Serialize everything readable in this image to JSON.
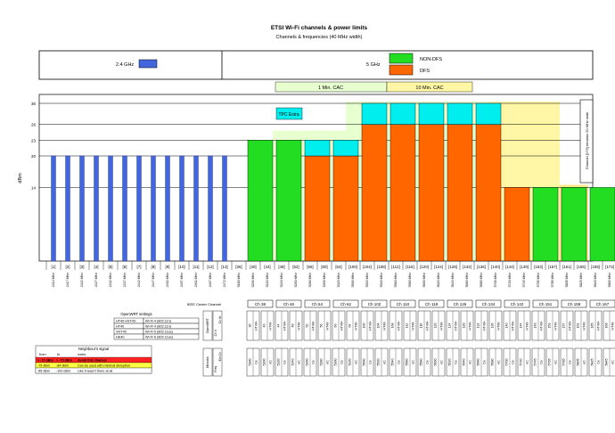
{
  "chart_data": {
    "type": "bar",
    "title": "ETSI Wi-Fi channels & power limits",
    "subtitle": "Channels & frequencies (40 MHz width)",
    "ylabel": "dBm",
    "ylim": [
      0,
      30
    ],
    "yticks": [
      14,
      20,
      23,
      26,
      30
    ],
    "band_labels": {
      "g24": "2.4 GHz",
      "g5": "5 GHz"
    },
    "legend": [
      {
        "name": "NON-DFS",
        "color": "#22dd22"
      },
      {
        "name": "DFS",
        "color": "#ff6600"
      }
    ],
    "cac": {
      "one_min": "1 Min. CAC",
      "ten_min": "10 Min. CAC"
    },
    "tpc_label": "TPC Extra",
    "side_note": "Channel [173] remains 20 MHz wide",
    "colors": {
      "g24": "#4466dd",
      "nondfs": "#22dd22",
      "dfs": "#ff6600",
      "tpc": "#00eeee",
      "cac1": "#e8ffd0",
      "cac10": "#fff6a6",
      "cac_dark": "#ffe98a"
    },
    "x_24": [
      "[1]",
      "[2]",
      "[3]",
      "[4]",
      "[5]",
      "[6]",
      "[7]",
      "[8]",
      "[9]",
      "[10]",
      "[11]",
      "[12]",
      "[13]"
    ],
    "freq_24": [
      "2412 MHz",
      "2417 MHz",
      "2422 MHz",
      "2427 MHz",
      "2432 MHz",
      "2437 MHz",
      "2442 MHz",
      "2447 MHz",
      "2452 MHz",
      "2457 MHz",
      "2462 MHz",
      "2467 MHz",
      "2472 MHz"
    ],
    "values_24": [
      20,
      20,
      20,
      20,
      20,
      20,
      20,
      20,
      20,
      20,
      20,
      20,
      20
    ],
    "bars_5": [
      {
        "label": "[36] [40]",
        "value": 23,
        "type": "nondfs"
      },
      {
        "label": "[44] [48]",
        "value": 23,
        "type": "nondfs"
      },
      {
        "label": "[52] [56]",
        "value": 20,
        "type": "dfs",
        "tpc": 3
      },
      {
        "label": "[60] [64]",
        "value": 20,
        "type": "dfs",
        "tpc": 3
      },
      {
        "label": "[100] [104]",
        "value": 26,
        "type": "dfs",
        "tpc": 4
      },
      {
        "label": "[108] [112]",
        "value": 26,
        "type": "dfs",
        "tpc": 4
      },
      {
        "label": "[116] [120]",
        "value": 26,
        "type": "dfs",
        "tpc": 4
      },
      {
        "label": "[124] [128]",
        "value": 26,
        "type": "dfs",
        "tpc": 4
      },
      {
        "label": "[132] [136]",
        "value": 26,
        "type": "dfs",
        "tpc": 4
      },
      {
        "label": "[140] [144]",
        "value": 14,
        "type": "dfs"
      },
      {
        "label": "[149] [153]",
        "value": 14,
        "type": "nondfs"
      },
      {
        "label": "[157] [161]",
        "value": 14,
        "type": "nondfs"
      },
      {
        "label": "[165] [169]",
        "value": 14,
        "type": "nondfs"
      },
      {
        "label": "[173]",
        "value": 14,
        "type": "nondfs"
      }
    ],
    "x_5": [
      "[36]",
      "[40]",
      "[44]",
      "[48]",
      "[52]",
      "[56]",
      "[60]",
      "[64]",
      "[100]",
      "[104]",
      "[108]",
      "[112]",
      "[116]",
      "[120]",
      "[124]",
      "[128]",
      "[132]",
      "[136]",
      "[140]",
      "[144]",
      "[149]",
      "[153]",
      "[157]",
      "[161]",
      "[165]",
      "[169]",
      "[173]"
    ],
    "freq_5": [
      "5180 MHz",
      "5200 MHz",
      "5220 MHz",
      "5240 MHz",
      "5260 MHz",
      "5280 MHz",
      "5300 MHz",
      "5320 MHz",
      "5500 MHz",
      "5520 MHz",
      "5540 MHz",
      "5560 MHz",
      "5580 MHz",
      "5600 MHz",
      "5620 MHz",
      "5640 MHz",
      "5660 MHz",
      "5680 MHz",
      "5700 MHz",
      "5720 MHz",
      "5745 MHz",
      "5765 MHz",
      "5785 MHz",
      "5805 MHz",
      "5825 MHz",
      "5845 MHz",
      "5865 MHz"
    ],
    "ieee_label": "IEEE Center Channel",
    "ieee_centers": [
      "Ch 38",
      "Ch 46",
      "Ch 54",
      "Ch 62",
      "Ch 102",
      "Ch 110",
      "Ch 118",
      "Ch 126",
      "Ch 134",
      "Ch 142",
      "Ch 151",
      "Ch 159",
      "Ch 167"
    ],
    "openwrt_title": "OpenWRT settings",
    "openwrt_rows": [
      [
        "HT40+/HT40-",
        "Wi-Fi 4 (802.11n)"
      ],
      [
        "HT40",
        "Wi-Fi 4 (802.11n)"
      ],
      [
        "VHT40",
        "Wi-Fi 5 (802.11ac)"
      ],
      [
        "HE40",
        "Wi-Fi 6 (802.11ax)"
      ]
    ],
    "openwrt_col": [
      "OpenWRT",
      "Ch #",
      "Ch Nr"
    ],
    "upper_cells": [
      [
        "36",
        "HT40+"
      ],
      [
        "40",
        "HT40-"
      ],
      [
        "44",
        "HT40+"
      ],
      [
        "48",
        "HT40-"
      ],
      [
        "52",
        "HT40+"
      ],
      [
        "56",
        "HT40-"
      ],
      [
        "60",
        "HT40+"
      ],
      [
        "64",
        "HT40-"
      ],
      [
        "100",
        "HT40+"
      ],
      [
        "104",
        "HT40-"
      ],
      [
        "108",
        "HT40+"
      ],
      [
        "112",
        "HT40-"
      ],
      [
        "116",
        "HT40+"
      ],
      [
        "120",
        "HT40-"
      ],
      [
        "124",
        "HT40+"
      ],
      [
        "128",
        "HT40-"
      ],
      [
        "132",
        "HT40+"
      ],
      [
        "136",
        "HT40-"
      ],
      [
        "140",
        "HT40+"
      ],
      [
        "144",
        "HT40-"
      ],
      [
        "149",
        "HT40+"
      ],
      [
        "153",
        "HT40-"
      ],
      [
        "157",
        "HT40+"
      ],
      [
        "161",
        "HT40-"
      ],
      [
        "165",
        "HT40+"
      ],
      [
        "169",
        "HT40-"
      ],
      [
        "173",
        "HT20"
      ]
    ],
    "mikrotik_col": [
      "Mikrotik",
      "Freq",
      "Ext Ch"
    ],
    "lower_cells": [
      [
        "5180",
        "Ce"
      ],
      [
        "5200",
        "eC"
      ],
      [
        "5220",
        "Ce"
      ],
      [
        "5240",
        "eC"
      ],
      [
        "5260",
        "Ce"
      ],
      [
        "5280",
        "eC"
      ],
      [
        "5300",
        "Ce"
      ],
      [
        "5320",
        "eC"
      ],
      [
        "5500",
        "Ce"
      ],
      [
        "5520",
        "eC"
      ],
      [
        "5540",
        "Ce"
      ],
      [
        "5560",
        "eC"
      ],
      [
        "5580",
        "Ce"
      ],
      [
        "5600",
        "eC"
      ],
      [
        "5620",
        "Ce"
      ],
      [
        "5640",
        "eC"
      ],
      [
        "5660",
        "Ce"
      ],
      [
        "5680",
        "eC"
      ],
      [
        "5700",
        "Ce"
      ],
      [
        "5720",
        "eC"
      ],
      [
        "5745",
        "Ce"
      ],
      [
        "5765",
        "eC"
      ],
      [
        "5785",
        "Ce"
      ],
      [
        "5805",
        "eC"
      ],
      [
        "5825",
        "Ce"
      ],
      [
        "5845",
        "eC"
      ],
      [
        "5865",
        "C"
      ]
    ],
    "neighbours": {
      "title": "Neighbour's signal",
      "header": [
        "from",
        "to",
        "notes"
      ],
      "rows": [
        {
          "from": "> -70 dBm",
          "to": "> -75 dBm",
          "note": "Avoid this channel",
          "color": "#ff2222"
        },
        {
          "from": "-75 dBm",
          "to": "-84 dBm",
          "note": "Can be used with minimal disruption",
          "color": "#ffff44"
        },
        {
          "from": "-85 dBm",
          "to": "-100 dBm",
          "note": "Like it wasn't there at all",
          "color": "#ffffff"
        }
      ]
    }
  }
}
